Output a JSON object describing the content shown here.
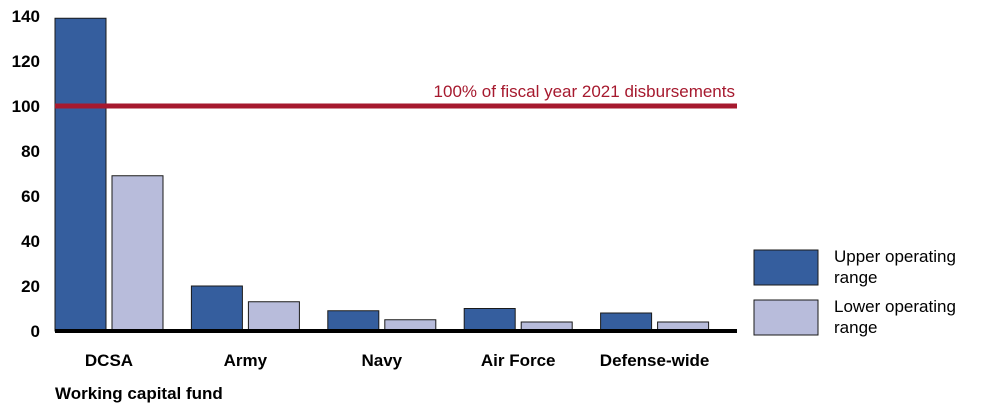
{
  "chart_data": {
    "type": "bar",
    "categories": [
      "DCSA",
      "Army",
      "Navy",
      "Air Force",
      "Defense-wide"
    ],
    "series": [
      {
        "name": "Upper operating range",
        "values": [
          139,
          20,
          9,
          10,
          8
        ],
        "color": "#355e9e"
      },
      {
        "name": "Lower operating range",
        "values": [
          69,
          13,
          5,
          4,
          4
        ],
        "color": "#b8bcdb"
      }
    ],
    "reference_line": {
      "value": 100,
      "label": "100% of fiscal year 2021 disbursements",
      "color": "#a6192e"
    },
    "ylim": [
      0,
      140
    ],
    "yticks": [
      0,
      20,
      40,
      60,
      80,
      100,
      120,
      140
    ],
    "xlabel": "Working capital fund",
    "ylabel": "",
    "title": "",
    "grid": false,
    "legend_position": "right"
  }
}
